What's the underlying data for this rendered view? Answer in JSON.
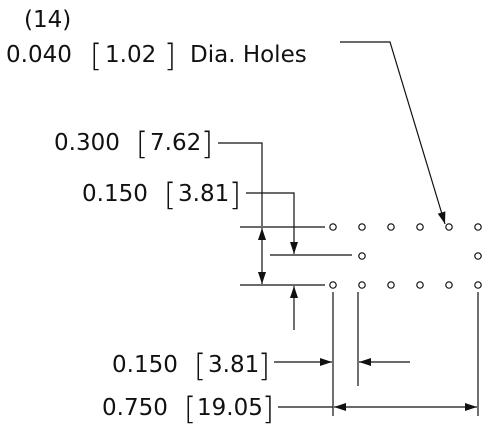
{
  "callout": {
    "count": "(14)",
    "inch": "0.040",
    "mm": "1.02",
    "suffix": "Dia. Holes"
  },
  "dimensions": [
    {
      "id": "row-spacing-total",
      "inch": "0.300",
      "mm": "7.62"
    },
    {
      "id": "row-spacing-half",
      "inch": "0.150",
      "mm": "3.81"
    },
    {
      "id": "column-pitch",
      "inch": "0.150",
      "mm": "3.81"
    },
    {
      "id": "overall-width",
      "inch": "0.750",
      "mm": "19.05"
    }
  ],
  "holes": {
    "rows": [
      {
        "columns": [
          0,
          1,
          2,
          3,
          4,
          5
        ]
      },
      {
        "columns": [
          1,
          5
        ]
      },
      {
        "columns": [
          0,
          1,
          2,
          3,
          4,
          5
        ]
      }
    ]
  },
  "colors": {
    "ink": "#111111",
    "background": "#ffffff"
  }
}
